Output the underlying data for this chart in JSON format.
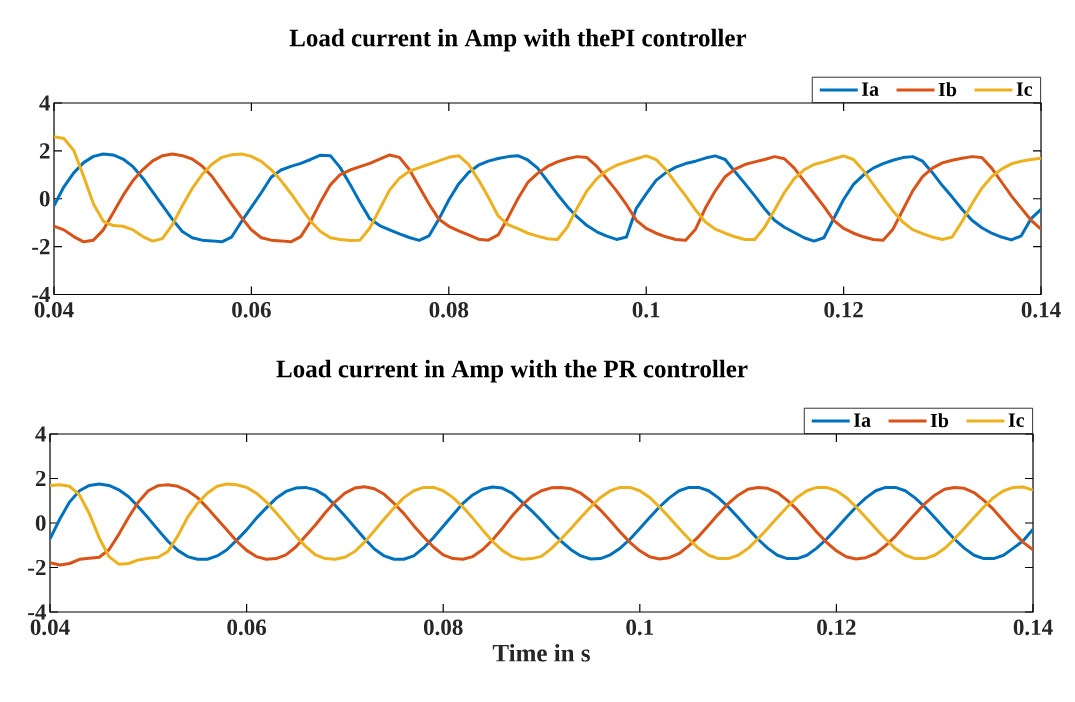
{
  "chart_data": [
    {
      "type": "line",
      "title": "Load current in Amp with thePI controller",
      "legend": "top right",
      "xlim": [
        0.04,
        0.14
      ],
      "ylim": [
        -4,
        4
      ],
      "xticks": [
        0.04,
        0.06,
        0.08,
        0.1,
        0.12,
        0.14
      ],
      "yticks": [
        -4,
        -2,
        0,
        2,
        4
      ],
      "x": [
        0.04,
        0.041,
        0.042,
        0.043,
        0.044,
        0.045,
        0.046,
        0.047,
        0.048,
        0.049,
        0.05,
        0.051,
        0.052,
        0.053,
        0.054,
        0.055,
        0.056,
        0.057,
        0.058,
        0.059,
        0.06,
        0.061,
        0.062,
        0.063,
        0.064,
        0.065,
        0.066,
        0.067,
        0.068,
        0.069,
        0.07,
        0.071,
        0.072,
        0.073,
        0.074,
        0.075,
        0.076,
        0.077,
        0.078,
        0.079,
        0.08,
        0.081,
        0.082,
        0.083,
        0.084,
        0.085,
        0.086,
        0.087,
        0.088,
        0.089,
        0.09,
        0.091,
        0.092,
        0.093,
        0.094,
        0.095,
        0.096,
        0.097,
        0.098,
        0.099,
        0.1,
        0.101,
        0.102,
        0.103,
        0.104,
        0.105,
        0.106,
        0.107,
        0.108,
        0.109,
        0.11,
        0.111,
        0.112,
        0.113,
        0.114,
        0.115,
        0.116,
        0.117,
        0.118,
        0.119,
        0.12,
        0.121,
        0.122,
        0.123,
        0.124,
        0.125,
        0.126,
        0.127,
        0.128,
        0.129,
        0.13,
        0.131,
        0.132,
        0.133,
        0.134,
        0.135,
        0.136,
        0.137,
        0.138,
        0.139,
        0.14
      ],
      "series": [
        {
          "name": "Ia",
          "color": "#0072bd",
          "values": [
            -0.29,
            0.5,
            1.08,
            1.51,
            1.77,
            1.87,
            1.83,
            1.66,
            1.34,
            0.86,
            0.29,
            -0.29,
            -0.86,
            -1.37,
            -1.63,
            -1.73,
            -1.76,
            -1.8,
            -1.6,
            -0.95,
            -0.35,
            0.25,
            0.9,
            1.2,
            1.35,
            1.48,
            1.64,
            1.82,
            1.8,
            1.3,
            0.6,
            -0.15,
            -0.84,
            -1.12,
            -1.3,
            -1.47,
            -1.62,
            -1.74,
            -1.55,
            -0.85,
            -0.05,
            0.62,
            1.1,
            1.4,
            1.57,
            1.68,
            1.76,
            1.8,
            1.62,
            1.28,
            0.74,
            0.19,
            -0.32,
            -0.76,
            -1.12,
            -1.38,
            -1.56,
            -1.7,
            -1.6,
            -0.4,
            0.2,
            0.77,
            1.09,
            1.32,
            1.47,
            1.57,
            1.7,
            1.79,
            1.64,
            1.13,
            0.63,
            0.12,
            -0.42,
            -0.9,
            -1.19,
            -1.41,
            -1.63,
            -1.77,
            -1.63,
            -0.83,
            -0.03,
            0.6,
            0.99,
            1.28,
            1.47,
            1.61,
            1.72,
            1.76,
            1.57,
            1.09,
            0.55,
            0.07,
            -0.44,
            -0.9,
            -1.21,
            -1.44,
            -1.6,
            -1.72,
            -1.55,
            -0.83,
            -0.44
          ]
        },
        {
          "name": "Ib",
          "color": "#d95319",
          "values": [
            -1.15,
            -1.3,
            -1.58,
            -1.8,
            -1.73,
            -1.3,
            -0.58,
            0.14,
            0.76,
            1.22,
            1.58,
            1.8,
            1.87,
            1.8,
            1.66,
            1.37,
            0.94,
            0.36,
            -0.22,
            -0.79,
            -1.3,
            -1.63,
            -1.73,
            -1.76,
            -1.8,
            -1.58,
            -0.94,
            -0.14,
            0.58,
            1.01,
            1.2,
            1.34,
            1.48,
            1.66,
            1.83,
            1.73,
            1.22,
            0.5,
            -0.22,
            -0.86,
            -1.15,
            -1.34,
            -1.51,
            -1.69,
            -1.73,
            -1.51,
            -0.79,
            0,
            0.68,
            1.06,
            1.35,
            1.54,
            1.67,
            1.76,
            1.72,
            1.35,
            0.84,
            0.33,
            -0.25,
            -0.9,
            -1.24,
            -1.44,
            -1.59,
            -1.7,
            -1.73,
            -1.27,
            -0.39,
            0.33,
            0.92,
            1.24,
            1.43,
            1.54,
            1.64,
            1.76,
            1.67,
            1.28,
            0.74,
            0.22,
            -0.32,
            -0.9,
            -1.24,
            -1.44,
            -1.59,
            -1.7,
            -1.73,
            -1.27,
            -0.47,
            0.33,
            0.92,
            1.28,
            1.5,
            1.61,
            1.69,
            1.76,
            1.72,
            1.28,
            0.7,
            0.12,
            -0.39,
            -0.9,
            -1.27
          ]
        },
        {
          "name": "Ic",
          "color": "#edb120",
          "values": [
            2.59,
            2.52,
            2.02,
            0.94,
            -0.22,
            -0.94,
            -1.12,
            -1.15,
            -1.3,
            -1.58,
            -1.77,
            -1.66,
            -1.08,
            -0.29,
            0.43,
            1.01,
            1.44,
            1.73,
            1.84,
            1.87,
            1.77,
            1.56,
            1.22,
            0.76,
            0.22,
            -0.36,
            -0.94,
            -1.37,
            -1.63,
            -1.7,
            -1.74,
            -1.73,
            -1.22,
            -0.43,
            0.36,
            0.86,
            1.15,
            1.3,
            1.44,
            1.58,
            1.73,
            1.8,
            1.44,
            0.79,
            0.07,
            -0.72,
            -1.08,
            -1.25,
            -1.44,
            -1.56,
            -1.67,
            -1.7,
            -1.19,
            -0.39,
            0.33,
            0.84,
            1.18,
            1.4,
            1.54,
            1.67,
            1.79,
            1.64,
            1.21,
            0.65,
            0.12,
            -0.47,
            -0.97,
            -1.27,
            -1.44,
            -1.59,
            -1.7,
            -1.7,
            -1.19,
            -0.47,
            0.26,
            0.84,
            1.21,
            1.43,
            1.54,
            1.67,
            1.79,
            1.64,
            1.18,
            0.6,
            0.04,
            -0.51,
            -0.97,
            -1.29,
            -1.46,
            -1.6,
            -1.7,
            -1.6,
            -0.95,
            -0.22,
            0.44,
            0.92,
            1.24,
            1.46,
            1.57,
            1.64,
            1.69
          ]
        }
      ]
    },
    {
      "type": "line",
      "title": "Load current in Amp with the PR controller",
      "xlabel": "Time in s",
      "legend": "top right",
      "xlim": [
        0.04,
        0.14
      ],
      "ylim": [
        -4,
        4
      ],
      "xticks": [
        0.04,
        0.06,
        0.08,
        0.1,
        0.12,
        0.14
      ],
      "yticks": [
        -4,
        -2,
        0,
        2,
        4
      ],
      "x": [
        0.04,
        0.041,
        0.042,
        0.043,
        0.044,
        0.045,
        0.046,
        0.047,
        0.048,
        0.049,
        0.05,
        0.051,
        0.052,
        0.053,
        0.054,
        0.055,
        0.056,
        0.057,
        0.058,
        0.059,
        0.06,
        0.061,
        0.062,
        0.063,
        0.064,
        0.065,
        0.066,
        0.067,
        0.068,
        0.069,
        0.07,
        0.071,
        0.072,
        0.073,
        0.074,
        0.075,
        0.076,
        0.077,
        0.078,
        0.079,
        0.08,
        0.081,
        0.082,
        0.083,
        0.084,
        0.085,
        0.086,
        0.087,
        0.088,
        0.089,
        0.09,
        0.091,
        0.092,
        0.093,
        0.094,
        0.095,
        0.096,
        0.097,
        0.098,
        0.099,
        0.1,
        0.101,
        0.102,
        0.103,
        0.104,
        0.105,
        0.106,
        0.107,
        0.108,
        0.109,
        0.11,
        0.111,
        0.112,
        0.113,
        0.114,
        0.115,
        0.116,
        0.117,
        0.118,
        0.119,
        0.12,
        0.121,
        0.122,
        0.123,
        0.124,
        0.125,
        0.126,
        0.127,
        0.128,
        0.129,
        0.13,
        0.131,
        0.132,
        0.133,
        0.134,
        0.135,
        0.136,
        0.137,
        0.138,
        0.139,
        0.14
      ],
      "series": [
        {
          "name": "Ia",
          "color": "#0072bd",
          "values": [
            -0.71,
            0.18,
            0.95,
            1.45,
            1.69,
            1.75,
            1.69,
            1.49,
            1.18,
            0.72,
            0.22,
            -0.31,
            -0.82,
            -1.23,
            -1.51,
            -1.63,
            -1.63,
            -1.48,
            -1.2,
            -0.77,
            -0.31,
            0.22,
            0.68,
            1.11,
            1.42,
            1.57,
            1.6,
            1.49,
            1.23,
            0.8,
            0.31,
            -0.2,
            -0.71,
            -1.17,
            -1.48,
            -1.63,
            -1.63,
            -1.48,
            -1.12,
            -0.66,
            -0.15,
            0.37,
            0.88,
            1.26,
            1.52,
            1.62,
            1.57,
            1.34,
            0.95,
            0.55,
            0.1,
            -0.38,
            -0.82,
            -1.2,
            -1.48,
            -1.62,
            -1.6,
            -1.43,
            -1.13,
            -0.73,
            -0.25,
            0.25,
            0.72,
            1.13,
            1.45,
            1.6,
            1.6,
            1.45,
            1.13,
            0.72,
            0.25,
            -0.25,
            -0.72,
            -1.13,
            -1.45,
            -1.6,
            -1.6,
            -1.45,
            -1.13,
            -0.72,
            -0.25,
            0.25,
            0.72,
            1.13,
            1.45,
            1.6,
            1.6,
            1.45,
            1.13,
            0.72,
            0.25,
            -0.25,
            -0.72,
            -1.13,
            -1.45,
            -1.6,
            -1.6,
            -1.45,
            -1.13,
            -0.8,
            -0.28
          ]
        },
        {
          "name": "Ib",
          "color": "#d95319",
          "values": [
            -1.78,
            -1.89,
            -1.82,
            -1.63,
            -1.58,
            -1.54,
            -1.2,
            -0.51,
            0.26,
            0.95,
            1.45,
            1.68,
            1.72,
            1.65,
            1.45,
            1.14,
            0.68,
            0.18,
            -0.31,
            -0.82,
            -1.23,
            -1.51,
            -1.63,
            -1.6,
            -1.43,
            -1.08,
            -0.58,
            -0.09,
            0.46,
            0.95,
            1.34,
            1.57,
            1.63,
            1.54,
            1.29,
            0.88,
            0.42,
            -0.12,
            -0.62,
            -1.08,
            -1.43,
            -1.6,
            -1.63,
            -1.51,
            -1.2,
            -0.77,
            -0.25,
            0.31,
            0.8,
            1.2,
            1.45,
            1.58,
            1.6,
            1.54,
            1.34,
            1.0,
            0.58,
            0.1,
            -0.4,
            -0.87,
            -1.25,
            -1.52,
            -1.62,
            -1.56,
            -1.37,
            -1.02,
            -0.6,
            -0.1,
            0.4,
            0.87,
            1.25,
            1.52,
            1.6,
            1.56,
            1.37,
            1.02,
            0.6,
            0.1,
            -0.4,
            -0.87,
            -1.25,
            -1.52,
            -1.62,
            -1.56,
            -1.37,
            -1.02,
            -0.6,
            -0.1,
            0.4,
            0.87,
            1.25,
            1.52,
            1.6,
            1.56,
            1.37,
            1.02,
            0.6,
            0.1,
            -0.4,
            -0.87,
            -1.2
          ]
        },
        {
          "name": "Ic",
          "color": "#edb120",
          "values": [
            1.69,
            1.72,
            1.65,
            1.26,
            0.42,
            -0.66,
            -1.51,
            -1.85,
            -1.82,
            -1.66,
            -1.58,
            -1.54,
            -1.28,
            -0.58,
            0.26,
            0.88,
            1.34,
            1.65,
            1.75,
            1.72,
            1.6,
            1.34,
            0.95,
            0.46,
            -0.05,
            -0.58,
            -1.05,
            -1.43,
            -1.6,
            -1.63,
            -1.54,
            -1.28,
            -0.86,
            -0.35,
            0.18,
            0.68,
            1.14,
            1.45,
            1.6,
            1.6,
            1.45,
            1.14,
            0.72,
            0.22,
            -0.31,
            -0.82,
            -1.23,
            -1.51,
            -1.63,
            -1.6,
            -1.5,
            -1.15,
            -0.72,
            -0.25,
            0.25,
            0.72,
            1.15,
            1.45,
            1.6,
            1.6,
            1.45,
            1.15,
            0.72,
            0.25,
            -0.25,
            -0.72,
            -1.15,
            -1.45,
            -1.6,
            -1.6,
            -1.45,
            -1.15,
            -0.72,
            -0.25,
            0.25,
            0.72,
            1.15,
            1.45,
            1.6,
            1.6,
            1.45,
            1.15,
            0.72,
            0.25,
            -0.25,
            -0.72,
            -1.15,
            -1.45,
            -1.6,
            -1.6,
            -1.45,
            -1.15,
            -0.72,
            -0.25,
            0.25,
            0.72,
            1.15,
            1.45,
            1.6,
            1.62,
            1.48
          ]
        }
      ]
    }
  ]
}
